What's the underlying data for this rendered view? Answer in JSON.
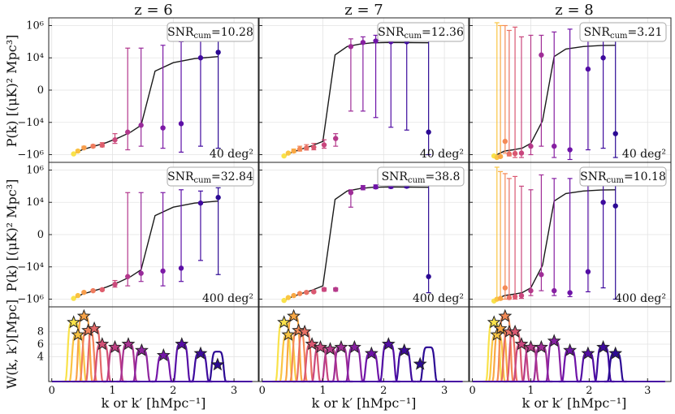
{
  "figure": {
    "columns": [
      {
        "title": "z = 6"
      },
      {
        "title": "z = 7"
      },
      {
        "title": "z = 8"
      }
    ],
    "ylabel_power": "P(k) [(μK)² Mpc³]",
    "ylabel_window": "W(k, k′)[Mpc]",
    "xlabel": "k or k′ [hMpc⁻¹]",
    "colors": {
      "model_line": "#1a1a1a",
      "snr_box_edge": "#aaaaaa",
      "grid": "#e3e3e3",
      "colormap": [
        "#f9e24a",
        "#fbb33e",
        "#f3835a",
        "#dc5a6f",
        "#c03f84",
        "#9c2c99",
        "#7515a9",
        "#470aa3",
        "#2c0a94"
      ]
    }
  },
  "chart_data": [
    {
      "type": "scatter",
      "panel": "z=6, 40 deg²",
      "column": 0,
      "row": 0,
      "snr_label": "SNR_cum=10.28",
      "snr_main": "SNR",
      "snr_sub": "cum",
      "snr_value": "=10.28",
      "area_label": "40 deg²",
      "x": [
        0.36,
        0.43,
        0.53,
        0.68,
        0.83,
        1.04,
        1.25,
        1.47,
        1.83,
        2.13,
        2.45,
        2.74
      ],
      "y": [
        -900000,
        -600000,
        -380000,
        -300000,
        -260000,
        -120000,
        -40000,
        -15000,
        -22000,
        -12000,
        10000,
        22000
      ],
      "err_low": [
        -1000000,
        -700000,
        -440000,
        -360000,
        -330000,
        -200000,
        -500000,
        -300000,
        -400000,
        -700000,
        -300000,
        -400000
      ],
      "err_high": [
        -800000,
        -500000,
        -300000,
        -240000,
        -180000,
        -50000,
        40000,
        40000,
        60000,
        100000,
        150000,
        200000
      ],
      "model_x": [
        0.36,
        0.5,
        0.7,
        0.9,
        1.1,
        1.3,
        1.47,
        1.7,
        2.0,
        2.35,
        2.74
      ],
      "model_y": [
        -900000,
        -500000,
        -300000,
        -180000,
        -90000,
        -40000,
        -15000,
        1500,
        5000,
        9000,
        12000
      ],
      "ylim": [
        -3000000,
        3000000
      ],
      "yticks": [
        "10⁶",
        "10⁴",
        "0",
        "−10⁴",
        "−10⁶"
      ],
      "xlim": [
        -0.05,
        3.4
      ]
    },
    {
      "type": "scatter",
      "panel": "z=7, 40 deg²",
      "column": 1,
      "row": 0,
      "snr_label": "SNR_cum=12.36",
      "snr_main": "SNR",
      "snr_sub": "cum",
      "snr_value": "=12.36",
      "area_label": "40 deg²",
      "x": [
        0.36,
        0.43,
        0.52,
        0.62,
        0.73,
        0.85,
        1.02,
        1.21,
        1.46,
        1.66,
        1.87,
        2.12,
        2.38,
        2.74
      ],
      "y": [
        -1200000,
        -800000,
        -600000,
        -450000,
        -380000,
        -350000,
        -250000,
        -100000,
        50000,
        90000,
        110000,
        100000,
        100000,
        -40000
      ],
      "err_low": [
        -1300000,
        -900000,
        -750000,
        -600000,
        -520000,
        -500000,
        -400000,
        -300000,
        -2000,
        -2000,
        -5000,
        -20000,
        -30000,
        -1000000
      ],
      "err_high": [
        -1100000,
        -700000,
        -450000,
        -300000,
        -240000,
        -200000,
        -120000,
        -50000,
        150000,
        200000,
        250000,
        300000,
        400000,
        500000
      ],
      "model_x": [
        0.36,
        0.5,
        0.65,
        0.8,
        1.0,
        1.2,
        1.4,
        1.6,
        1.8,
        2.1,
        2.4,
        2.74
      ],
      "model_y": [
        -1200000,
        -700000,
        -450000,
        -300000,
        -150000,
        15000,
        50000,
        70000,
        85000,
        90000,
        88000,
        86000
      ],
      "ylim": [
        -3000000,
        3000000
      ],
      "yticks": [],
      "xlim": [
        -0.05,
        3.4
      ]
    },
    {
      "type": "scatter",
      "panel": "z=8, 40 deg²",
      "column": 2,
      "row": 0,
      "snr_label": "SNR_cum=3.21",
      "snr_main": "SNR",
      "snr_sub": "cum",
      "snr_value": "=3.21",
      "area_label": "40 deg²",
      "x": [
        0.37,
        0.42,
        0.48,
        0.56,
        0.63,
        0.73,
        0.84,
        1.0,
        1.18,
        1.4,
        1.67,
        1.98,
        2.24,
        2.45
      ],
      "y": [
        -1200000,
        -1500000,
        -1300000,
        -150000,
        -900000,
        -850000,
        -800000,
        -300000,
        15000,
        -300000,
        -500000,
        2000,
        10000,
        -50000
      ],
      "err_low": [
        -1300000,
        -1700000,
        -1500000,
        -800000,
        -1200000,
        -1500000,
        -1500000,
        -1000000,
        -300000,
        -1500000,
        -2000000,
        -500000,
        -400000,
        -1500000
      ],
      "err_high": [
        -1100000,
        1500000,
        1000000,
        1000000,
        500000,
        800000,
        200000,
        250000,
        250000,
        400000,
        600000,
        400000,
        500000,
        800000
      ],
      "model_x": [
        0.37,
        0.55,
        0.7,
        0.85,
        1.0,
        1.2,
        1.4,
        1.6,
        1.9,
        2.2,
        2.45
      ],
      "model_y": [
        -1200000,
        -600000,
        -500000,
        -400000,
        -200000,
        -8000,
        12000,
        35000,
        50000,
        58000,
        60000
      ],
      "ylim": [
        -3000000,
        3000000
      ],
      "yticks": [],
      "xlim": [
        -0.05,
        3.4
      ]
    },
    {
      "type": "scatter",
      "panel": "z=6, 400 deg²",
      "column": 0,
      "row": 1,
      "snr_label": "SNR_cum=32.84",
      "snr_main": "SNR",
      "snr_sub": "cum",
      "snr_value": "=32.84",
      "area_label": "400 deg²",
      "x": [
        0.36,
        0.43,
        0.53,
        0.68,
        0.83,
        1.04,
        1.25,
        1.47,
        1.83,
        2.13,
        2.45,
        2.74
      ],
      "y": [
        -900000,
        -600000,
        -380000,
        -300000,
        -260000,
        -120000,
        -40000,
        -25000,
        -18000,
        -12000,
        9000,
        20000
      ],
      "err_low": [
        -950000,
        -650000,
        -420000,
        -340000,
        -300000,
        -180000,
        -150000,
        -80000,
        -150000,
        -80000,
        -4000,
        -30000
      ],
      "err_high": [
        -850000,
        -550000,
        -340000,
        -260000,
        -220000,
        -70000,
        40000,
        40000,
        40000,
        60000,
        50000,
        80000
      ],
      "model_x": [
        0.36,
        0.5,
        0.7,
        0.9,
        1.1,
        1.3,
        1.47,
        1.7,
        2.0,
        2.35,
        2.74
      ],
      "model_y": [
        -900000,
        -500000,
        -300000,
        -180000,
        -90000,
        -40000,
        -15000,
        1500,
        5000,
        9000,
        12000
      ],
      "ylim": [
        -3000000,
        3000000
      ],
      "yticks": [
        "10⁶",
        "10⁴",
        "0",
        "−10⁴",
        "−10⁶"
      ],
      "xlim": [
        -0.05,
        3.4
      ]
    },
    {
      "type": "scatter",
      "panel": "z=7, 400 deg²",
      "column": 1,
      "row": 1,
      "snr_label": "SNR_cum=38.8",
      "snr_main": "SNR",
      "snr_sub": "cum",
      "snr_value": "=38.8",
      "area_label": "400 deg²",
      "x": [
        0.36,
        0.43,
        0.52,
        0.62,
        0.73,
        0.85,
        1.02,
        1.21,
        1.46,
        1.66,
        1.87,
        2.12,
        2.38,
        2.74
      ],
      "y": [
        -1200000,
        -800000,
        -600000,
        -450000,
        -380000,
        -350000,
        -250000,
        -250000,
        40000,
        80000,
        90000,
        95000,
        100000,
        -40000
      ],
      "err_low": [
        -1250000,
        -850000,
        -650000,
        -500000,
        -430000,
        -400000,
        -320000,
        -320000,
        5000,
        60000,
        70000,
        75000,
        80000,
        -400000
      ],
      "err_high": [
        -1150000,
        -750000,
        -550000,
        -400000,
        -330000,
        -300000,
        -200000,
        -200000,
        60000,
        110000,
        120000,
        120000,
        130000,
        300000
      ],
      "model_x": [
        0.36,
        0.5,
        0.65,
        0.8,
        1.0,
        1.2,
        1.4,
        1.6,
        1.8,
        2.1,
        2.4,
        2.74
      ],
      "model_y": [
        -1200000,
        -700000,
        -450000,
        -300000,
        -150000,
        15000,
        50000,
        70000,
        85000,
        90000,
        88000,
        86000
      ],
      "ylim": [
        -3000000,
        3000000
      ],
      "yticks": [],
      "xlim": [
        -0.05,
        3.4
      ]
    },
    {
      "type": "scatter",
      "panel": "z=8, 400 deg²",
      "column": 2,
      "row": 1,
      "snr_label": "SNR_cum=10.18",
      "snr_main": "SNR",
      "snr_sub": "cum",
      "snr_value": "=10.18",
      "area_label": "400 deg²",
      "x": [
        0.37,
        0.42,
        0.48,
        0.56,
        0.63,
        0.73,
        0.84,
        1.0,
        1.18,
        1.4,
        1.67,
        1.98,
        2.24,
        2.45
      ],
      "y": [
        -1300000,
        -1000000,
        -900000,
        -200000,
        -800000,
        -700000,
        -600000,
        -300000,
        -30000,
        -300000,
        -400000,
        -20000,
        10000,
        6000
      ],
      "err_low": [
        -1400000,
        -1100000,
        -1100000,
        -1000000,
        -1000000,
        -1000000,
        -900000,
        -600000,
        -300000,
        -600000,
        -700000,
        -350000,
        -200000,
        -1000000
      ],
      "err_high": [
        -1200000,
        1500000,
        800000,
        600000,
        300000,
        400000,
        100000,
        60000,
        500000,
        300000,
        300000,
        300000,
        400000,
        600000
      ],
      "model_x": [
        0.37,
        0.55,
        0.7,
        0.85,
        1.0,
        1.2,
        1.4,
        1.6,
        1.9,
        2.2,
        2.45
      ],
      "model_y": [
        -1200000,
        -600000,
        -500000,
        -400000,
        -200000,
        -8000,
        12000,
        35000,
        50000,
        58000,
        60000
      ],
      "ylim": [
        -3000000,
        3000000
      ],
      "yticks": [],
      "xlim": [
        -0.05,
        3.4
      ]
    },
    {
      "type": "line",
      "panel": "z=6 window functions",
      "column": 0,
      "row": 2,
      "peaks_x": [
        0.36,
        0.43,
        0.53,
        0.6,
        0.7,
        0.83,
        1.04,
        1.26,
        1.48,
        1.84,
        2.14,
        2.45,
        2.73
      ],
      "peaks_y": [
        9.5,
        7.5,
        10.5,
        8.2,
        8.5,
        6.0,
        5.5,
        6.0,
        5.0,
        4.2,
        6.0,
        4.5,
        4.8
      ],
      "stars_x": [
        0.36,
        0.43,
        0.53,
        0.6,
        0.7,
        0.83,
        1.04,
        1.26,
        1.48,
        1.84,
        2.14,
        2.45,
        2.73
      ],
      "stars_y": [
        9.5,
        7.5,
        10.5,
        8.2,
        8.5,
        6.0,
        5.5,
        6.0,
        5.0,
        4.2,
        6.0,
        4.5,
        2.7
      ],
      "xlim": [
        -0.05,
        3.4
      ],
      "ylim": [
        0,
        12
      ],
      "yticks": [
        "4",
        "6",
        "8"
      ],
      "xticks": [
        "0",
        "1",
        "2",
        "3"
      ]
    },
    {
      "type": "line",
      "panel": "z=7 window functions",
      "column": 1,
      "row": 2,
      "peaks_x": [
        0.36,
        0.43,
        0.52,
        0.6,
        0.7,
        0.82,
        0.96,
        1.12,
        1.3,
        1.52,
        1.8,
        2.08,
        2.34,
        2.74
      ],
      "peaks_y": [
        9.5,
        7.5,
        10.5,
        8.2,
        8.0,
        6.0,
        5.5,
        5.2,
        5.5,
        5.5,
        4.5,
        6.0,
        5.0,
        5.5
      ],
      "stars_x": [
        0.36,
        0.43,
        0.52,
        0.6,
        0.7,
        0.82,
        0.96,
        1.12,
        1.3,
        1.52,
        1.8,
        2.08,
        2.34,
        2.6
      ],
      "stars_y": [
        9.5,
        7.5,
        10.5,
        8.2,
        8.0,
        6.0,
        5.5,
        5.2,
        5.5,
        5.5,
        4.5,
        6.0,
        5.0,
        2.8
      ],
      "xlim": [
        -0.05,
        3.4
      ],
      "ylim": [
        0,
        12
      ],
      "yticks": [],
      "xticks": [
        "0",
        "1",
        "2",
        "3"
      ]
    },
    {
      "type": "line",
      "panel": "z=8 window functions",
      "column": 2,
      "row": 2,
      "peaks_x": [
        0.37,
        0.42,
        0.48,
        0.56,
        0.63,
        0.73,
        0.84,
        1.0,
        1.18,
        1.4,
        1.67,
        1.98,
        2.24,
        2.45
      ],
      "peaks_y": [
        9.5,
        7.5,
        8.5,
        10.5,
        8.0,
        8.0,
        6.0,
        5.5,
        5.5,
        6.5,
        5.0,
        4.5,
        5.5,
        4.5
      ],
      "stars_x": [
        0.37,
        0.42,
        0.48,
        0.56,
        0.63,
        0.73,
        0.84,
        1.0,
        1.18,
        1.4,
        1.67,
        1.98,
        2.24,
        2.45
      ],
      "stars_y": [
        9.5,
        7.5,
        8.5,
        10.5,
        8.0,
        8.0,
        6.0,
        5.5,
        5.5,
        6.5,
        5.0,
        4.5,
        5.5,
        4.5
      ],
      "xlim": [
        -0.05,
        3.4
      ],
      "ylim": [
        0,
        12
      ],
      "yticks": [],
      "xticks": [
        "0",
        "1",
        "2",
        "3"
      ]
    }
  ]
}
